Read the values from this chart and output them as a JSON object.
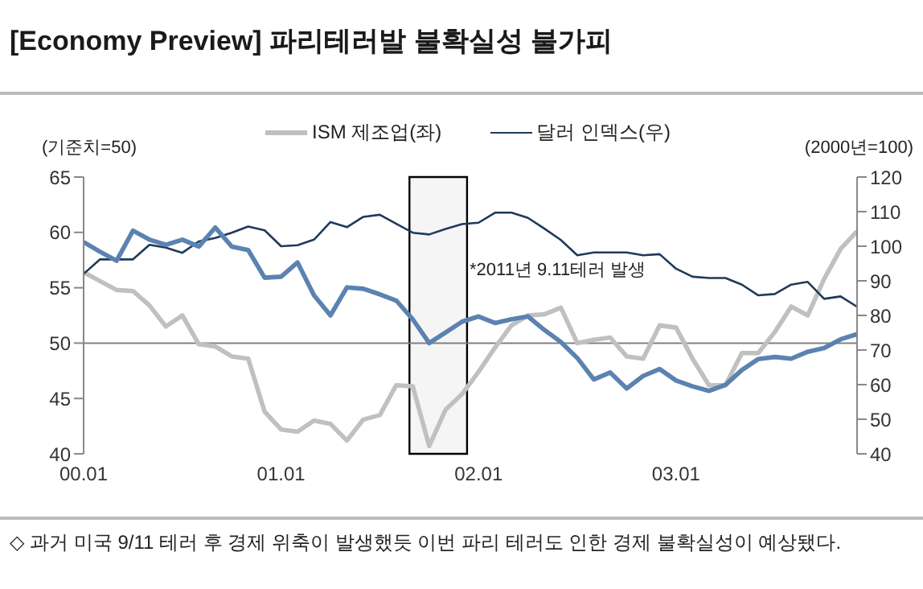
{
  "chart_data": {
    "type": "line",
    "title": "[Economy Preview] 파리테러발 불확실성 불가피",
    "ylabel": "(기준치=50)",
    "y2label": "(2000년=100)",
    "x": [
      "2000-01",
      "2000-02",
      "2000-03",
      "2000-04",
      "2000-05",
      "2000-06",
      "2000-07",
      "2000-08",
      "2000-09",
      "2000-10",
      "2000-11",
      "2000-12",
      "2001-01",
      "2001-02",
      "2001-03",
      "2001-04",
      "2001-05",
      "2001-06",
      "2001-07",
      "2001-08",
      "2001-09",
      "2001-10",
      "2001-11",
      "2001-12",
      "2002-01",
      "2002-02",
      "2002-03",
      "2002-04",
      "2002-05",
      "2002-06",
      "2002-07",
      "2002-08",
      "2002-09",
      "2002-10",
      "2002-11",
      "2002-12",
      "2003-01",
      "2003-02",
      "2003-03",
      "2003-04",
      "2003-05",
      "2003-06",
      "2003-07",
      "2003-08",
      "2003-09",
      "2003-10",
      "2003-11",
      "2003-12"
    ],
    "series": [
      {
        "name": "ISM 제조업(좌)",
        "color": "#c0c0c0",
        "values": [
          56.4,
          55.6,
          54.8,
          54.7,
          53.4,
          51.5,
          52.5,
          49.9,
          49.7,
          48.8,
          48.6,
          43.8,
          42.2,
          42.0,
          43.0,
          42.7,
          41.2,
          43.1,
          43.5,
          46.2,
          46.1,
          40.7,
          44.0,
          45.4,
          47.4,
          49.6,
          51.6,
          52.5,
          52.6,
          53.2,
          50.0,
          50.3,
          50.5,
          48.8,
          48.6,
          51.6,
          51.4,
          48.6,
          46.2,
          46.2,
          49.1,
          49.1,
          51.0,
          53.3,
          52.5,
          55.8,
          58.5,
          60.1
        ]
      },
      {
        "name": "달러 인덱스(우)",
        "color": "#1f3a5a",
        "axis": "y2",
        "values": [
          92.0,
          96.2,
          96.2,
          96.2,
          100.4,
          99.6,
          98.1,
          101.4,
          102.4,
          103.9,
          105.7,
          104.6,
          100.0,
          100.3,
          101.9,
          107.0,
          105.5,
          108.5,
          109.1,
          106.5,
          103.9,
          103.4,
          105.0,
          106.4,
          106.8,
          109.7,
          109.7,
          108.2,
          105.1,
          101.8,
          97.4,
          98.2,
          98.2,
          98.2,
          97.4,
          97.7,
          93.5,
          91.2,
          90.8,
          90.8,
          88.9,
          85.8,
          86.2,
          88.9,
          89.7,
          84.8,
          85.5,
          82.5
        ]
      },
      {
        "color": "#5b82b0",
        "axis": "y2",
        "values": [
          101.2,
          98.4,
          95.8,
          104.5,
          101.9,
          100.4,
          101.9,
          99.9,
          105.4,
          99.9,
          98.9,
          90.9,
          91.2,
          95.3,
          85.8,
          80.0,
          88.1,
          87.7,
          86.1,
          84.3,
          78.9,
          72.0,
          75.1,
          78.2,
          79.7,
          77.8,
          78.9,
          79.7,
          75.8,
          72.3,
          67.7,
          61.5,
          63.5,
          58.9,
          62.5,
          64.5,
          61.2,
          59.5,
          58.2,
          59.9,
          64.2,
          67.4,
          68.0,
          67.5,
          69.5,
          70.6,
          73.1,
          74.6
        ]
      }
    ],
    "xlim": [
      "2000-01",
      "2003-12"
    ],
    "xticks": [
      {
        "value": "2000-01",
        "label": "00.01"
      },
      {
        "value": "2001-01",
        "label": "01.01"
      },
      {
        "value": "2002-01",
        "label": "02.01"
      },
      {
        "value": "2003-01",
        "label": "03.01"
      }
    ],
    "ylim": [
      40,
      65
    ],
    "yticks": [
      40,
      45,
      50,
      55,
      60,
      65
    ],
    "y2lim": [
      40,
      120
    ],
    "y2ticks": [
      40,
      50,
      60,
      70,
      80,
      90,
      100,
      110,
      120
    ],
    "ref_lines": [
      {
        "axis": "y",
        "value": 50,
        "color": "#808080"
      }
    ],
    "bands": [
      {
        "axis": "x",
        "from": "2001-08-25",
        "to": "2001-12-10",
        "color": "#000000"
      }
    ],
    "annotations": [
      "*2011년 9.11테러 발생",
      "◇ 과거 미국 9/11 테러 후 경제 위축이 발생했듯 이번 파리 테러도 인한 경제 불확실성이 예상됐다."
    ],
    "legend": "top",
    "grid": false,
    "marker": "none",
    "line_style": "solid"
  }
}
